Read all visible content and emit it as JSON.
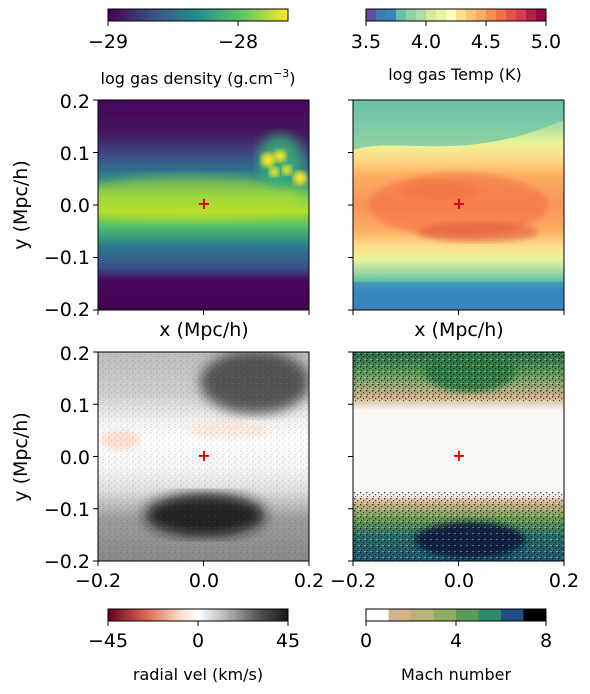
{
  "chart_data": [
    {
      "type": "heatmap",
      "panel": "top-left",
      "colorbar": {
        "label": "log gas density (g.cm",
        "label_sup": "−3",
        "label_end": ")",
        "ticks": [
          "−29",
          "−28"
        ],
        "range": [
          -29.5,
          -27.5
        ],
        "cmap": "viridis",
        "position": "top"
      },
      "xlabel": "x (Mpc/h)",
      "ylabel": "y (Mpc/h)",
      "xlim": [
        -0.2,
        0.2
      ],
      "ylim": [
        -0.2,
        0.2
      ],
      "yticks": [
        "0.2",
        "0.1",
        "0.0",
        "−0.1",
        "−0.2"
      ],
      "marker": {
        "x": 0.0,
        "y": 0.0,
        "symbol": "+",
        "color": "#e00000"
      }
    },
    {
      "type": "heatmap",
      "panel": "top-right",
      "colorbar": {
        "label": "log gas Temp (K)",
        "ticks": [
          "3.5",
          "4.0",
          "4.5",
          "5.0"
        ],
        "range": [
          3.5,
          5.0
        ],
        "cmap": "Spectral_r (discrete)",
        "position": "top"
      },
      "xlabel": "x (Mpc/h)",
      "xlim": [
        -0.2,
        0.2
      ],
      "ylim": [
        -0.2,
        0.2
      ],
      "marker": {
        "x": 0.0,
        "y": 0.0,
        "symbol": "+",
        "color": "#e00000"
      }
    },
    {
      "type": "heatmap",
      "panel": "bottom-left",
      "colorbar": {
        "label": "radial vel (km/s)",
        "ticks": [
          "−45",
          "0",
          "45"
        ],
        "range": [
          -45,
          45
        ],
        "cmap": "RdGy",
        "position": "bottom"
      },
      "ylabel": "y (Mpc/h)",
      "xlim": [
        -0.2,
        0.2
      ],
      "ylim": [
        -0.2,
        0.2
      ],
      "xticks": [
        "−0.2",
        "0.0",
        "0.2"
      ],
      "yticks": [
        "0.2",
        "0.1",
        "0.0",
        "−0.1",
        "−0.2"
      ],
      "marker": {
        "x": 0.0,
        "y": 0.0,
        "symbol": "+",
        "color": "#e00000"
      }
    },
    {
      "type": "heatmap",
      "panel": "bottom-right",
      "colorbar": {
        "label": "Mach number",
        "ticks": [
          "0",
          "4",
          "8"
        ],
        "range": [
          0,
          8
        ],
        "cmap": "gist_earth_r (discrete)",
        "position": "bottom"
      },
      "xlim": [
        -0.2,
        0.2
      ],
      "ylim": [
        -0.2,
        0.2
      ],
      "xticks": [
        "−0.2",
        "0.0",
        "0.2"
      ],
      "marker": {
        "x": 0.0,
        "y": 0.0,
        "symbol": "+",
        "color": "#e00000"
      }
    }
  ]
}
